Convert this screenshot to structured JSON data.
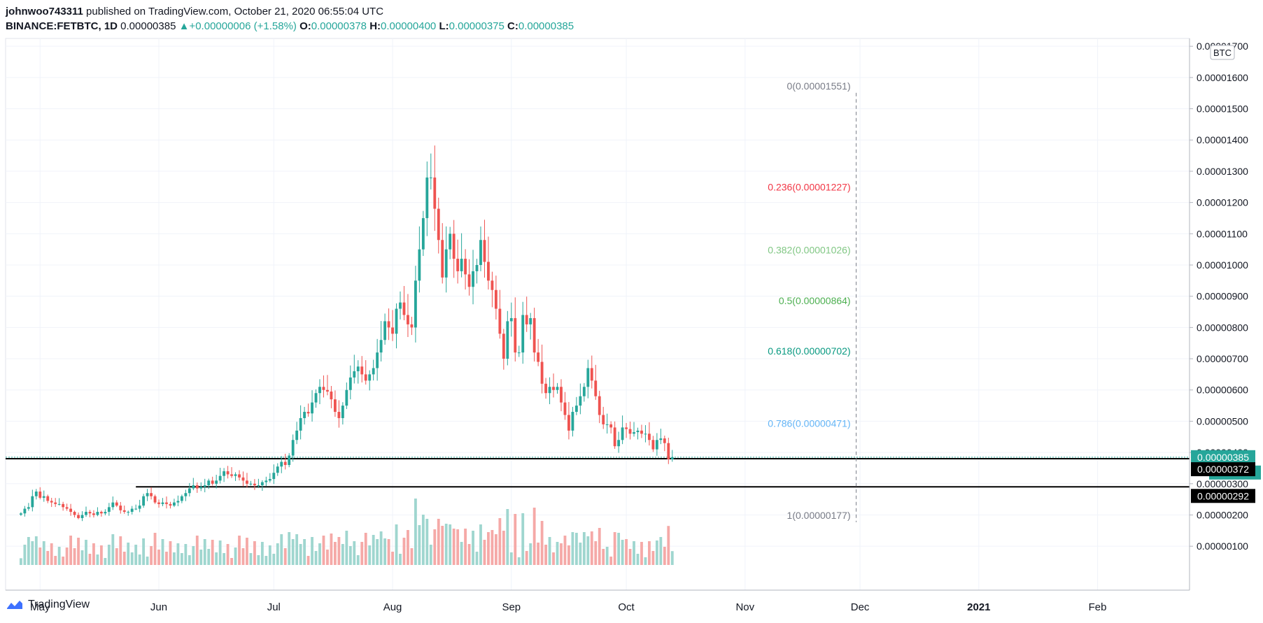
{
  "header": {
    "author": "johnwoo743311",
    "published_text": "published on TradingView.com, October 21, 2020 06:55:04 UTC",
    "symbol": "BINANCE:FETBTC, 1D",
    "last": "0.00000385",
    "change": "+0.00000006 (+1.58%)",
    "o_label": "O:",
    "o_value": "0.00000378",
    "h_label": "H:",
    "h_value": "0.00000400",
    "l_label": "L:",
    "l_value": "0.00000375",
    "c_label": "C:",
    "c_value": "0.00000385"
  },
  "footer": {
    "brand": "TradingView"
  },
  "chart_data": {
    "type": "candlestick",
    "currency": "BTC",
    "ylim": [
      4e-07,
      1.725e-05
    ],
    "y_ticks": [
      1e-06,
      2e-06,
      3e-06,
      4e-06,
      5e-06,
      6e-06,
      7e-06,
      8e-06,
      9e-06,
      1e-05,
      1.1e-05,
      1.2e-05,
      1.3e-05,
      1.4e-05,
      1.5e-05,
      1.6e-05,
      1.7e-05
    ],
    "y_tick_labels": [
      "0.00000100",
      "0.00000200",
      "0.00000300",
      "0.00000400",
      "0.00000500",
      "0.00000600",
      "0.00000700",
      "0.00000800",
      "0.00000900",
      "0.00001000",
      "0.00001100",
      "0.00001200",
      "0.00001300",
      "0.00001400",
      "0.00001500",
      "0.00001600",
      "0.00001700"
    ],
    "x_start": "2020-04-22",
    "x_end": "2021-02-25",
    "x_ticks": [
      {
        "label": "May",
        "date": "2020-05-01",
        "bold": false
      },
      {
        "label": "Jun",
        "date": "2020-06-01",
        "bold": false
      },
      {
        "label": "Jul",
        "date": "2020-07-01",
        "bold": false
      },
      {
        "label": "Aug",
        "date": "2020-08-01",
        "bold": false
      },
      {
        "label": "Sep",
        "date": "2020-09-01",
        "bold": false
      },
      {
        "label": "Oct",
        "date": "2020-10-01",
        "bold": false
      },
      {
        "label": "Nov",
        "date": "2020-11-01",
        "bold": false
      },
      {
        "label": "Dec",
        "date": "2020-12-01",
        "bold": false
      },
      {
        "label": "2021",
        "date": "2021-01-01",
        "bold": true
      },
      {
        "label": "Feb",
        "date": "2021-02-01",
        "bold": false
      }
    ],
    "series": [
      {
        "name": "FETBTC",
        "closes": [
          2.05,
          2.2,
          2.25,
          2.6,
          2.75,
          2.55,
          2.6,
          2.45,
          2.4,
          2.35,
          2.35,
          2.25,
          2.2,
          2.1,
          2.0,
          1.9,
          2.0,
          2.1,
          2.05,
          2.0,
          2.1,
          2.05,
          2.1,
          2.25,
          2.4,
          2.3,
          2.15,
          2.1,
          2.1,
          2.2,
          2.2,
          2.3,
          2.6,
          2.7,
          2.6,
          2.4,
          2.35,
          2.4,
          2.35,
          2.3,
          2.4,
          2.45,
          2.6,
          2.7,
          2.85,
          2.95,
          2.85,
          2.9,
          2.95,
          3.1,
          3.0,
          3.1,
          3.25,
          3.4,
          3.3,
          3.25,
          3.3,
          3.2,
          3.1,
          3.0,
          3.0,
          2.95,
          2.95,
          3.05,
          3.1,
          3.15,
          3.35,
          3.55,
          3.7,
          3.6,
          3.9,
          4.4,
          4.7,
          5.1,
          5.3,
          5.25,
          5.6,
          5.9,
          6.1,
          6.0,
          5.95,
          5.7,
          5.3,
          5.1,
          5.5,
          6.0,
          6.4,
          6.6,
          6.75,
          6.5,
          6.3,
          6.5,
          6.7,
          7.2,
          7.6,
          8.2,
          8.0,
          7.8,
          8.6,
          8.8,
          8.4,
          8.1,
          8.0,
          9.5,
          10.5,
          11.5,
          12.8,
          12.8,
          11.8,
          10.8,
          9.6,
          10.5,
          11.0,
          10.2,
          9.8,
          10.2,
          9.7,
          9.3,
          9.8,
          10.0,
          10.8,
          10.1,
          9.5,
          9.2,
          8.6,
          7.8,
          7.0,
          8.2,
          8.3,
          7.2,
          7.2,
          8.4,
          8.1,
          8.3,
          7.2,
          6.9,
          6.2,
          5.9,
          6.1,
          6.0,
          6.1,
          5.6,
          5.2,
          4.7,
          5.3,
          5.5,
          5.8,
          6.1,
          6.7,
          6.3,
          5.8,
          5.2,
          4.9,
          4.9,
          4.8,
          4.2,
          4.4,
          4.8,
          4.75,
          4.6,
          4.65,
          4.7,
          4.6,
          4.6,
          4.4,
          4.1,
          4.4,
          4.45,
          4.3,
          3.78,
          3.85
        ]
      }
    ],
    "volume_note": "relative volume bars shown at bottom",
    "horizontal_levels": [
      {
        "value": 3.8e-06,
        "from": "2020-04-22",
        "label": ""
      },
      {
        "value": 2.9e-06,
        "from": "2020-05-26",
        "label": ""
      }
    ],
    "fibonacci": {
      "x_date": "2020-11-30",
      "levels": [
        {
          "ratio": "0",
          "price": "0.00001551",
          "text": "0(0.00001551)",
          "color": "#787b86"
        },
        {
          "ratio": "0.236",
          "price": "0.00001227",
          "text": "0.236(0.00001227)",
          "color": "#f23645"
        },
        {
          "ratio": "0.382",
          "price": "0.00001026",
          "text": "0.382(0.00001026)",
          "color": "#81c784"
        },
        {
          "ratio": "0.5",
          "price": "0.00000864",
          "text": "0.5(0.00000864)",
          "color": "#4caf50"
        },
        {
          "ratio": "0.618",
          "price": "0.00000702",
          "text": "0.618(0.00000702)",
          "color": "#089981"
        },
        {
          "ratio": "0.786",
          "price": "0.00000471",
          "text": "0.786(0.00000471)",
          "color": "#64b5f6"
        },
        {
          "ratio": "1",
          "price": "0.00000177",
          "text": "1(0.00000177)",
          "color": "#787b86"
        }
      ]
    },
    "price_tags": [
      {
        "text": "0.00000385",
        "kind": "current",
        "bg": "#26a69a",
        "color": "#ffffff"
      },
      {
        "text": "17:04:58",
        "kind": "countdown",
        "bg": "#26a69a",
        "color": "#ffffff"
      },
      {
        "text": "0.00000372",
        "kind": "level",
        "bg": "#000000",
        "color": "#ffffff"
      },
      {
        "text": "0.00000292",
        "kind": "level",
        "bg": "#000000",
        "color": "#ffffff"
      }
    ],
    "colors": {
      "up": "#26a69a",
      "down": "#ef5350",
      "vol_up": "#9fd6cf",
      "vol_down": "#f5a9a7",
      "grid": "#f0f3fa"
    }
  }
}
